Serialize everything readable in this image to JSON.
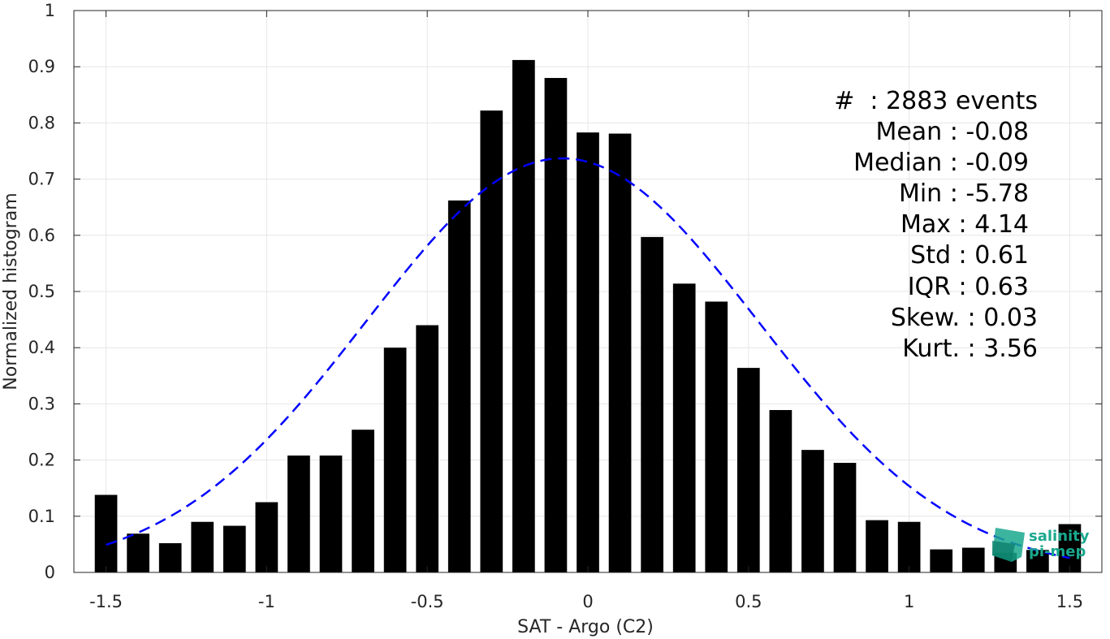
{
  "chart_data": {
    "type": "bar",
    "xlabel": "SAT - Argo (C2)",
    "ylabel": "Normalized histogram",
    "xlim": [
      -1.6,
      1.6
    ],
    "ylim": [
      0,
      1
    ],
    "grid": true,
    "x_ticks": [
      -1.5,
      -1,
      -0.5,
      0,
      0.5,
      1,
      1.5
    ],
    "x_tick_labels": [
      "-1.5",
      "-1",
      "-0.5",
      "0",
      "0.5",
      "1",
      "1.5"
    ],
    "y_ticks": [
      0,
      0.1,
      0.2,
      0.3,
      0.4,
      0.5,
      0.6,
      0.7,
      0.8,
      0.9,
      1
    ],
    "y_tick_labels": [
      "0",
      "0.1",
      "0.2",
      "0.3",
      "0.4",
      "0.5",
      "0.6",
      "0.7",
      "0.8",
      "0.9",
      "1"
    ],
    "bar_width": 0.07,
    "bar_color": "#000000",
    "x": [
      -1.5,
      -1.4,
      -1.3,
      -1.2,
      -1.1,
      -1.0,
      -0.9,
      -0.8,
      -0.7,
      -0.6,
      -0.5,
      -0.4,
      -0.3,
      -0.2,
      -0.1,
      0.0,
      0.1,
      0.2,
      0.3,
      0.4,
      0.5,
      0.6,
      0.7,
      0.8,
      0.9,
      1.0,
      1.1,
      1.2,
      1.3,
      1.4,
      1.5
    ],
    "values": [
      0.138,
      0.069,
      0.052,
      0.09,
      0.083,
      0.125,
      0.208,
      0.208,
      0.254,
      0.4,
      0.44,
      0.662,
      0.822,
      0.912,
      0.88,
      0.783,
      0.781,
      0.597,
      0.514,
      0.482,
      0.364,
      0.289,
      0.218,
      0.195,
      0.093,
      0.09,
      0.041,
      0.044,
      0.035,
      0.04,
      0.086
    ],
    "fit_curve": {
      "style": "dashed",
      "color": "#0000ff",
      "mean": -0.08,
      "std": 0.61,
      "peak": 0.737,
      "x_range": [
        -1.5,
        1.5
      ]
    }
  },
  "stats": [
    "#  : 2883 events",
    "Mean : -0.08",
    "Median : -0.09",
    "Min : -5.78",
    "Max : 4.14",
    "Std : 0.61",
    "IQR : 0.63",
    "Skew. : 0.03",
    "Kurt. : 3.56"
  ],
  "logo": {
    "line1": "salinity",
    "line2": "pi-mep",
    "color": "#1aa88e"
  }
}
